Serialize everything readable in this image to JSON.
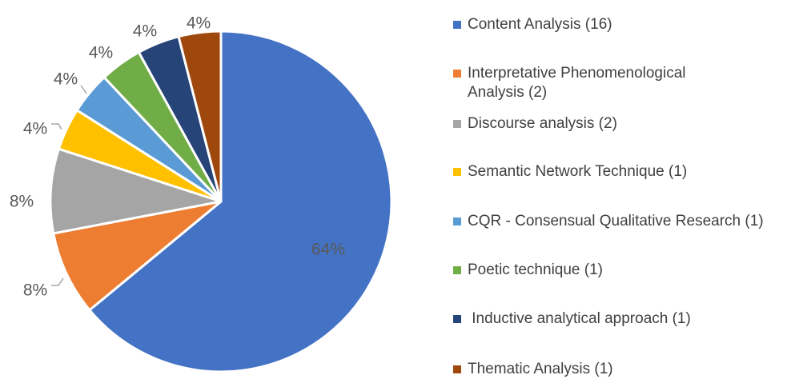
{
  "chart_data": {
    "type": "pie",
    "title": "",
    "legend_position": "right",
    "start_angle_deg": 0,
    "direction": "clockwise",
    "slices": [
      {
        "label": "Content Analysis (16)",
        "value": 16,
        "percent_label": "64%",
        "color": "#4472C4"
      },
      {
        "label": "Interpretative Phenomenological Analysis (2)",
        "value": 2,
        "percent_label": "8%",
        "color": "#ED7D31"
      },
      {
        "label": "Discourse analysis (2)",
        "value": 2,
        "percent_label": "8%",
        "color": "#A5A5A5"
      },
      {
        "label": "Semantic Network Technique (1)",
        "value": 1,
        "percent_label": "4%",
        "color": "#FFC000"
      },
      {
        "label": "CQR - Consensual Qualitative Research (1)",
        "value": 1,
        "percent_label": "4%",
        "color": "#5B9BD5"
      },
      {
        "label": "Poetic technique (1)",
        "value": 1,
        "percent_label": "4%",
        "color": "#70AD47"
      },
      {
        "label": " Inductive analytical approach (1)",
        "value": 1,
        "percent_label": "4%",
        "color": "#264478"
      },
      {
        "label": "Thematic Analysis (1)",
        "value": 1,
        "percent_label": "4%",
        "color": "#9E480E"
      }
    ]
  }
}
